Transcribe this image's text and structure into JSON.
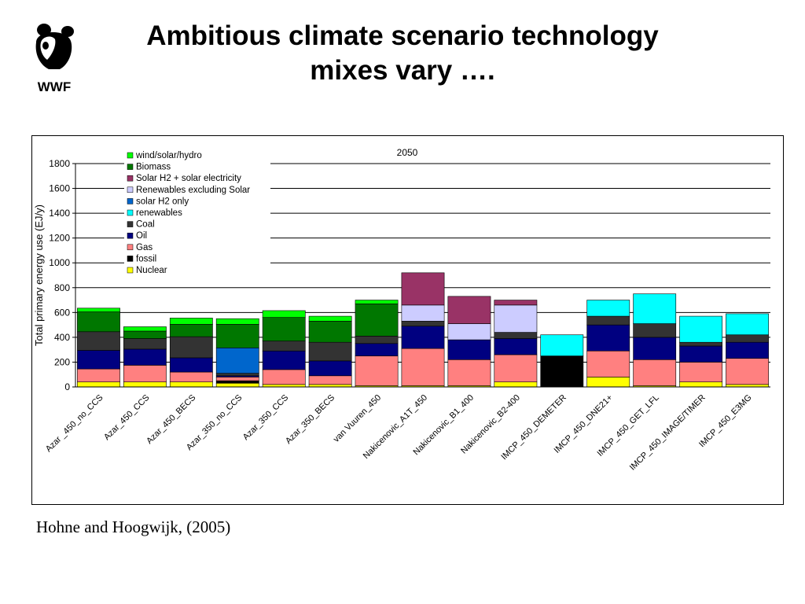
{
  "logo": {
    "text": "WWF"
  },
  "title": {
    "line1": "Ambitious climate scenario technology",
    "line2": "mixes vary …."
  },
  "source": "Hohne and Hoogwijk, (2005)",
  "chart_data": {
    "type": "bar",
    "stacked": true,
    "title": "2050",
    "ylabel": "Total primary energy use (EJ/y)",
    "xlabel": "",
    "ylim": [
      0,
      1800
    ],
    "yticks": [
      0,
      200,
      400,
      600,
      800,
      1000,
      1200,
      1400,
      1600,
      1800
    ],
    "grid": true,
    "legend_position": "top-left",
    "categories": [
      "Azar _450_no_CCS",
      "Azar_450_CCS",
      "Azar_450_BECS",
      "Azar_350_no_CCS",
      "Azar_350_CCS",
      "Azar_350_BECS",
      "van Vuuren_450",
      "Nakicenovic_A1T_450",
      "Nakicenovic_B1_400",
      "Nakicenovic_B2-400",
      "IMCP_450_DEMETER",
      "IMCP_450_DNE21+",
      "IMCP_450_GET_LFL",
      "IMCP_450_IMAGE/TIMER",
      "IMCP_450_E3MG"
    ],
    "series": [
      {
        "name": "Nuclear",
        "color": "#ffff00",
        "values": [
          40,
          40,
          40,
          30,
          20,
          20,
          10,
          10,
          10,
          40,
          0,
          80,
          10,
          40,
          20
        ]
      },
      {
        "name": "fossil",
        "color": "#000000",
        "values": [
          0,
          0,
          0,
          20,
          0,
          0,
          0,
          0,
          0,
          0,
          250,
          0,
          0,
          0,
          0
        ]
      },
      {
        "name": "Gas",
        "color": "#ff8080",
        "values": [
          105,
          135,
          80,
          30,
          120,
          70,
          240,
          300,
          210,
          220,
          0,
          210,
          210,
          160,
          210
        ]
      },
      {
        "name": "Oil",
        "color": "#000080",
        "values": [
          150,
          130,
          115,
          10,
          150,
          120,
          100,
          180,
          160,
          130,
          0,
          210,
          180,
          130,
          130
        ]
      },
      {
        "name": "Coal",
        "color": "#333333",
        "values": [
          150,
          85,
          170,
          20,
          80,
          150,
          60,
          40,
          0,
          50,
          0,
          70,
          110,
          30,
          60
        ]
      },
      {
        "name": "renewables",
        "color": "#00ffff",
        "values": [
          0,
          0,
          0,
          0,
          0,
          0,
          0,
          0,
          0,
          0,
          170,
          130,
          240,
          210,
          170
        ]
      },
      {
        "name": "solar H2 only",
        "color": "#0066cc",
        "values": [
          0,
          0,
          0,
          205,
          0,
          0,
          0,
          0,
          0,
          0,
          0,
          0,
          0,
          0,
          0
        ]
      },
      {
        "name": "Renewables excluding Solar",
        "color": "#ccccff",
        "values": [
          0,
          0,
          0,
          0,
          0,
          0,
          0,
          130,
          130,
          220,
          0,
          0,
          0,
          0,
          0
        ]
      },
      {
        "name": "Solar H2 + solar electricity",
        "color": "#993366",
        "values": [
          0,
          0,
          0,
          0,
          0,
          0,
          0,
          260,
          220,
          40,
          0,
          0,
          0,
          0,
          0
        ]
      },
      {
        "name": "Biomass",
        "color": "#007700",
        "values": [
          160,
          60,
          100,
          190,
          190,
          170,
          260,
          0,
          0,
          0,
          0,
          0,
          0,
          0,
          0
        ]
      },
      {
        "name": "wind/solar/hydro",
        "color": "#00ff00",
        "values": [
          30,
          35,
          50,
          45,
          55,
          40,
          30,
          0,
          0,
          0,
          0,
          0,
          0,
          0,
          0
        ]
      }
    ],
    "legend_order": [
      "wind/solar/hydro",
      "Biomass",
      "Solar H2 + solar electricity",
      "Renewables excluding Solar",
      "solar H2 only",
      "renewables",
      "Coal",
      "Oil",
      "Gas",
      "fossil",
      "Nuclear"
    ]
  }
}
